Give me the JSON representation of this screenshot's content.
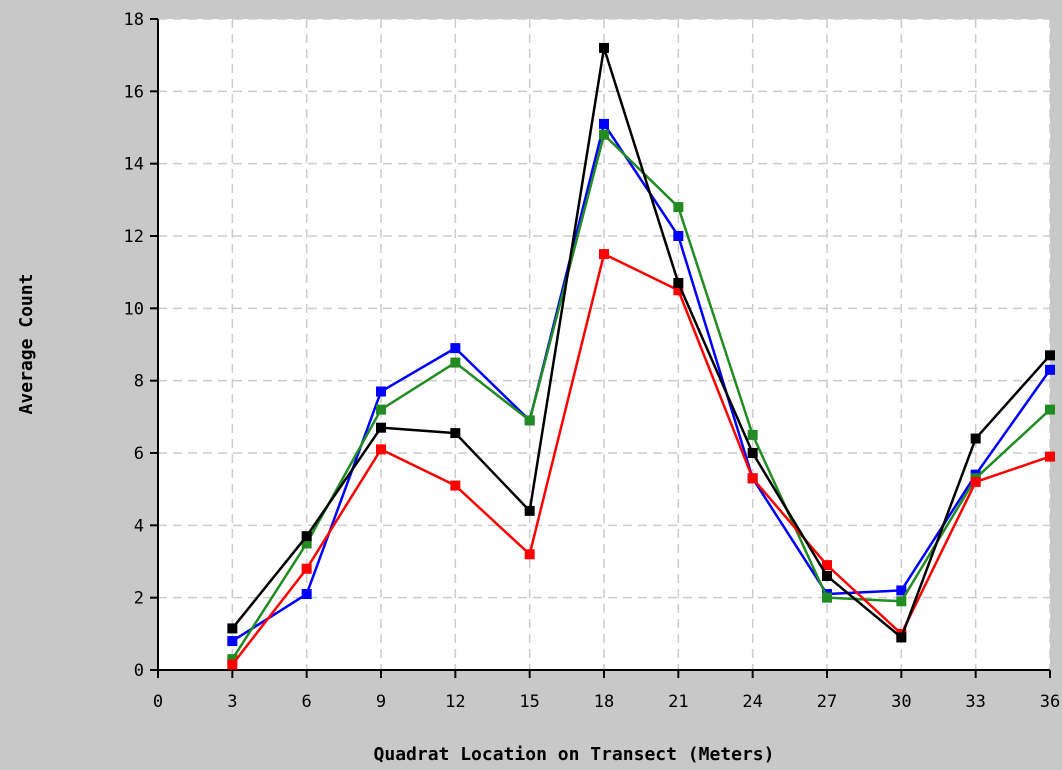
{
  "chart_data": {
    "type": "line",
    "title": "",
    "xlabel": "Quadrat Location on Transect (Meters)",
    "ylabel": "Average Count",
    "xlim": [
      0,
      36
    ],
    "ylim": [
      0,
      18
    ],
    "x_ticks": [
      0,
      3,
      6,
      9,
      12,
      15,
      18,
      21,
      24,
      27,
      30,
      33,
      36
    ],
    "y_ticks": [
      0,
      2,
      4,
      6,
      8,
      10,
      12,
      14,
      16,
      18
    ],
    "grid": true,
    "legend": "none",
    "x": [
      3,
      6,
      9,
      12,
      15,
      18,
      21,
      24,
      27,
      30,
      33,
      36
    ],
    "series": [
      {
        "color": "#0000ff",
        "values": [
          0.8,
          2.1,
          7.7,
          8.9,
          6.9,
          15.1,
          12.0,
          5.3,
          2.1,
          2.2,
          5.4,
          8.3
        ]
      },
      {
        "color": "#228b22",
        "values": [
          0.3,
          3.5,
          7.2,
          8.5,
          6.9,
          14.8,
          12.8,
          6.5,
          2.0,
          1.9,
          5.3,
          7.2
        ]
      },
      {
        "color": "#ff0000",
        "values": [
          0.15,
          2.8,
          6.1,
          5.1,
          3.2,
          11.5,
          10.5,
          5.3,
          2.9,
          1.0,
          5.2,
          5.9
        ]
      },
      {
        "color": "#000000",
        "values": [
          1.15,
          3.7,
          6.7,
          6.55,
          4.4,
          17.2,
          10.7,
          6.0,
          2.6,
          0.9,
          6.4,
          8.7
        ]
      }
    ]
  }
}
